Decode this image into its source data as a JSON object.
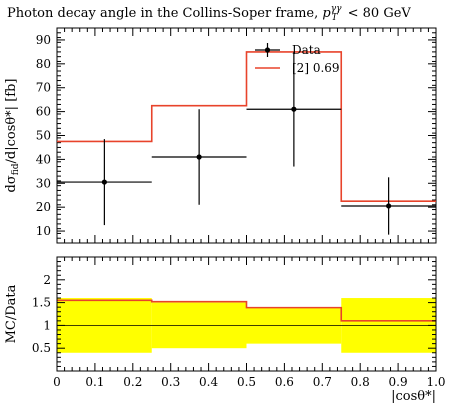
{
  "chart_data": [
    {
      "type": "line",
      "panel": "main",
      "title": "Photon decay angle in the Collins-Soper frame, p_T^γγ < 80 GeV",
      "ylabel": "dσ_fid/d|cosθ*| [fb]",
      "ylim": [
        5,
        95
      ],
      "yticks": [
        10,
        20,
        30,
        40,
        50,
        60,
        70,
        80,
        90
      ],
      "xlim": [
        0,
        1
      ],
      "bin_edges": [
        0,
        0.25,
        0.5,
        0.75,
        1.0
      ],
      "legend_position": "top-right",
      "series": [
        {
          "name": "Data",
          "style": "points-with-errorbars",
          "color": "#000000",
          "x": [
            0.125,
            0.375,
            0.625,
            0.875
          ],
          "y": [
            30.5,
            41,
            61,
            20.5
          ],
          "yerr_low": [
            18,
            20,
            24,
            12
          ],
          "yerr_high": [
            18,
            20,
            24,
            12
          ]
        },
        {
          "name": "[2] 0.69",
          "style": "step",
          "color": "#e8432b",
          "values": [
            47.5,
            62.5,
            85.0,
            22.5
          ]
        }
      ]
    },
    {
      "type": "line",
      "panel": "ratio",
      "ylabel": "MC/Data",
      "xlabel": "|cosθ*|",
      "ylim": [
        0.0,
        2.5
      ],
      "yticks": [
        0.5,
        1.0,
        1.5,
        2.0
      ],
      "ytick_labels": [
        "0.5",
        "1",
        "1.5",
        "2"
      ],
      "xlim": [
        0,
        1
      ],
      "xticks": [
        0,
        0.1,
        0.2,
        0.3,
        0.4,
        0.5,
        0.6,
        0.7,
        0.8,
        0.9,
        1.0
      ],
      "xtick_labels": [
        "0",
        "0.1",
        "0.2",
        "0.3",
        "0.4",
        "0.5",
        "0.6",
        "0.7",
        "0.8",
        "0.9",
        "1.0"
      ],
      "bin_edges": [
        0,
        0.25,
        0.5,
        0.75,
        1.0
      ],
      "band_color": "#ffff00",
      "band_low": [
        0.4,
        0.5,
        0.6,
        0.4
      ],
      "band_high": [
        1.6,
        1.5,
        1.4,
        1.6
      ],
      "reference_line": 1.0,
      "mc_ratio": [
        1.55,
        1.52,
        1.39,
        1.1
      ],
      "mc_color": "#e8432b"
    }
  ]
}
